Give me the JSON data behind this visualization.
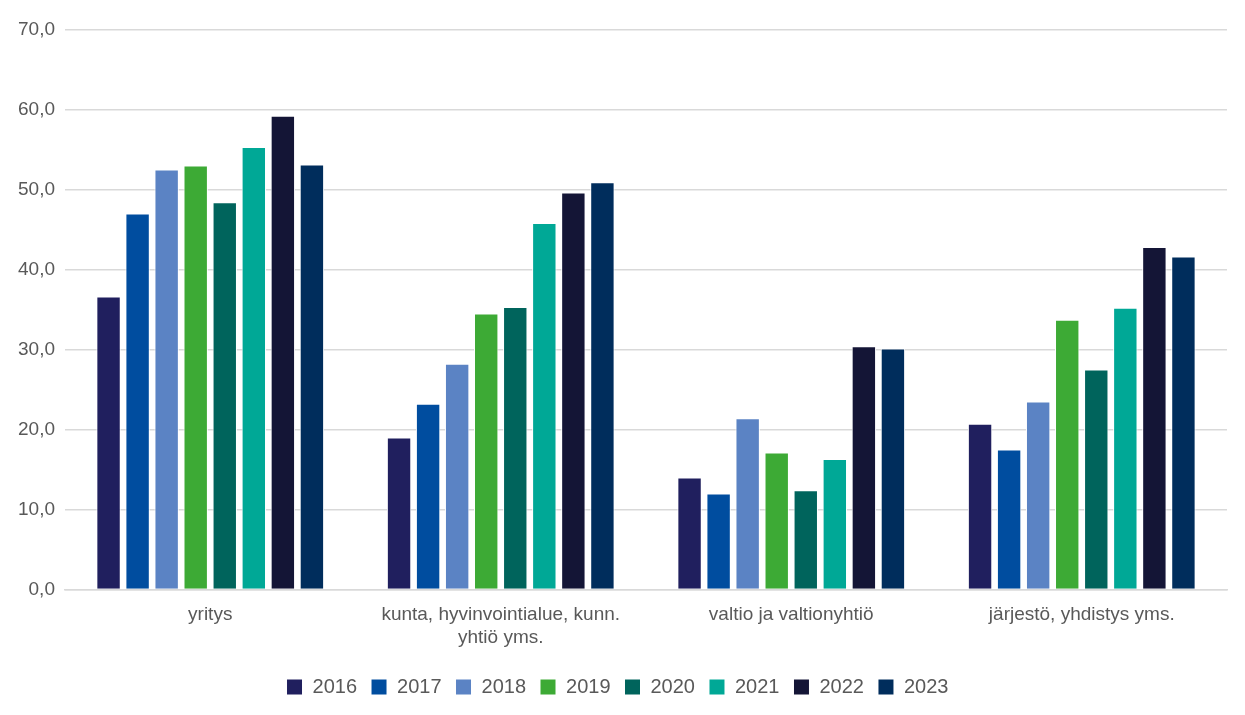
{
  "chart_data": {
    "type": "bar",
    "categories": [
      "yritys",
      "kunta, hyvinvointialue, kunn. yhtiö yms.",
      "valtio ja valtionyhtiö",
      "järjestö, yhdistys yms."
    ],
    "series": [
      {
        "name": "2016",
        "color": "#201f5e",
        "values": [
          36.6,
          19.0,
          14.0,
          20.7
        ]
      },
      {
        "name": "2017",
        "color": "#004d9f",
        "values": [
          47.0,
          23.2,
          12.0,
          17.5
        ]
      },
      {
        "name": "2018",
        "color": "#5b83c4",
        "values": [
          52.5,
          28.2,
          21.4,
          23.5
        ]
      },
      {
        "name": "2019",
        "color": "#3daa35",
        "values": [
          53.0,
          34.5,
          17.1,
          33.7
        ]
      },
      {
        "name": "2020",
        "color": "#00645c",
        "values": [
          48.4,
          35.3,
          12.4,
          27.5
        ]
      },
      {
        "name": "2021",
        "color": "#00a896",
        "values": [
          55.3,
          45.8,
          16.3,
          35.2
        ]
      },
      {
        "name": "2022",
        "color": "#141536",
        "values": [
          59.2,
          49.6,
          30.4,
          42.8
        ]
      },
      {
        "name": "2023",
        "color": "#002d5c",
        "values": [
          53.1,
          50.9,
          30.1,
          41.6
        ]
      }
    ],
    "ylim": [
      0,
      70
    ],
    "yticks": [
      {
        "value": 0,
        "label": "0,0"
      },
      {
        "value": 10,
        "label": "10,0"
      },
      {
        "value": 20,
        "label": "20,0"
      },
      {
        "value": 30,
        "label": "30,0"
      },
      {
        "value": 40,
        "label": "40,0"
      },
      {
        "value": 50,
        "label": "50,0"
      },
      {
        "value": 60,
        "label": "60,0"
      },
      {
        "value": 70,
        "label": "70,0"
      }
    ],
    "grid": "y",
    "legend": "bottom"
  }
}
